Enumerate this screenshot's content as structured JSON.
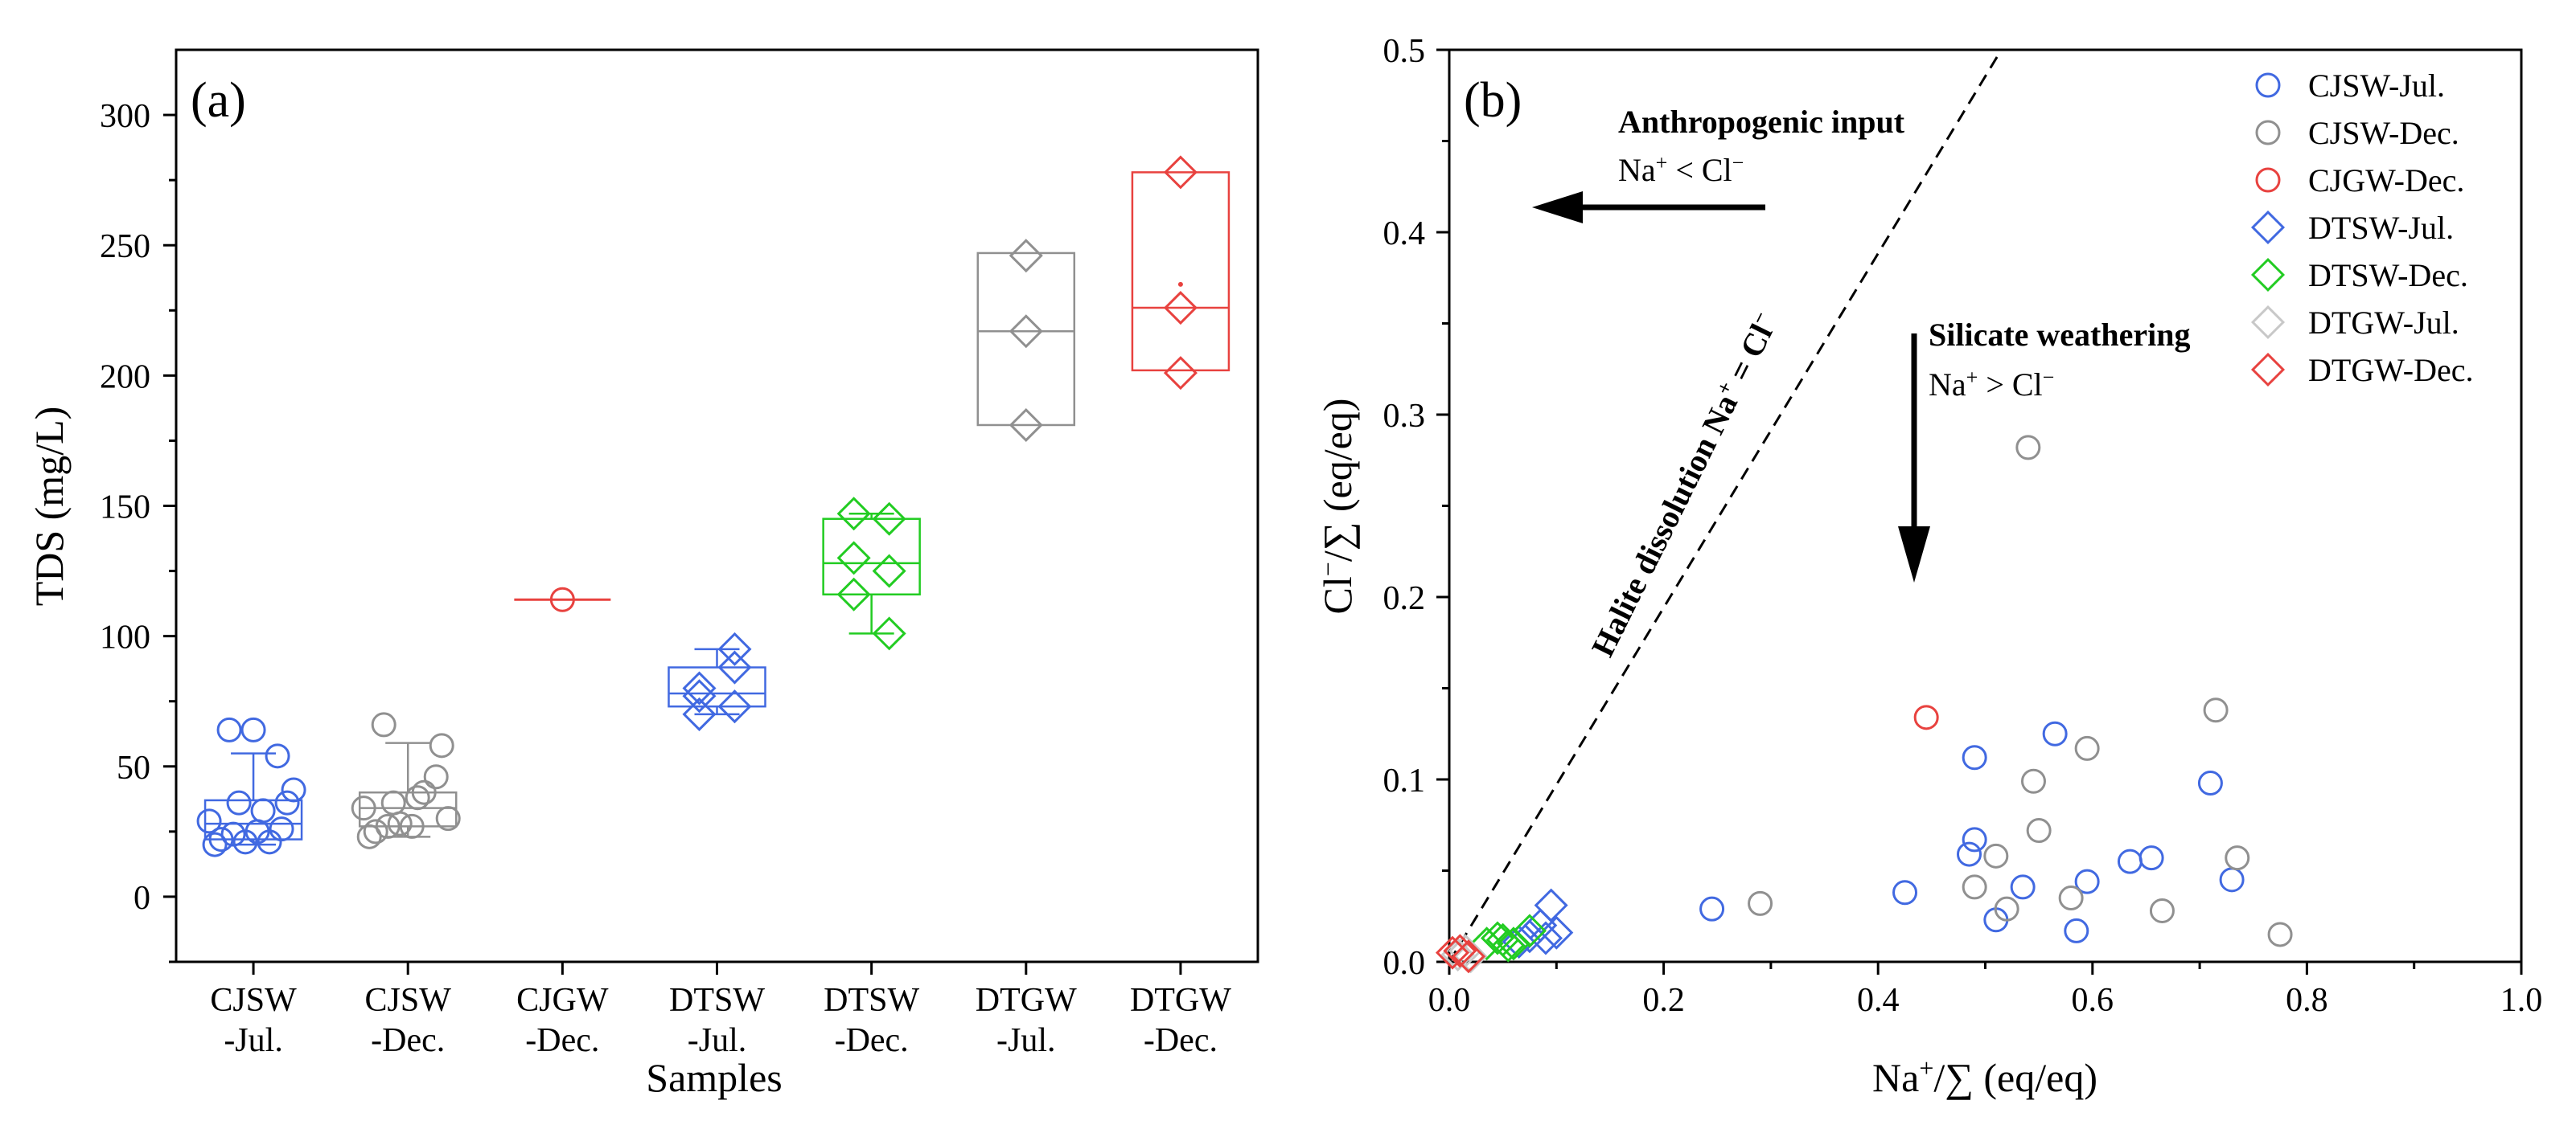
{
  "chart_data": [
    {
      "type": "box",
      "panel_label": "(a)",
      "xlabel": "Samples",
      "ylabel": "TDS (mg/L)",
      "ylim": [
        -25,
        325
      ],
      "yticks": [
        0,
        50,
        100,
        150,
        200,
        250,
        300
      ],
      "groups": [
        {
          "label1": "CJSW",
          "label2": "-Jul.",
          "marker": "circle",
          "color": "#4169e1",
          "box": {
            "q1": 22,
            "median": 28,
            "q3": 37,
            "whisker_low": 20,
            "whisker_high": 55,
            "mean": null
          },
          "points": [
            29,
            22,
            24,
            21,
            25,
            21,
            26,
            41,
            20,
            36,
            33,
            36,
            64,
            64,
            54
          ]
        },
        {
          "label1": "CJSW",
          "label2": "-Dec.",
          "marker": "circle",
          "color": "#909090",
          "box": {
            "q1": 27,
            "median": 34,
            "q3": 40,
            "whisker_low": 23,
            "whisker_high": 59,
            "mean": null
          },
          "points": [
            34,
            25,
            27,
            28,
            27,
            40,
            46,
            30,
            23,
            36,
            38,
            58,
            66
          ]
        },
        {
          "label1": "CJGW",
          "label2": "-Dec.",
          "marker": "circle",
          "color": "#e8423f",
          "box": {
            "q1": 114,
            "median": 114,
            "q3": 114,
            "whisker_low": 114,
            "whisker_high": 114,
            "mean": null
          },
          "points": [
            114
          ]
        },
        {
          "label1": "DTSW",
          "label2": "-Jul.",
          "marker": "diamond",
          "color": "#4169e1",
          "box": {
            "q1": 73,
            "median": 78,
            "q3": 88,
            "whisker_low": 70,
            "whisker_high": 95,
            "mean": null
          },
          "points": [
            80,
            73,
            70,
            88,
            77,
            95
          ]
        },
        {
          "label1": "DTSW",
          "label2": "-Dec.",
          "marker": "diamond",
          "color": "#22cc22",
          "box": {
            "q1": 116,
            "median": 128,
            "q3": 145,
            "whisker_low": 101,
            "whisker_high": 147,
            "mean": null
          },
          "points": [
            147,
            125,
            116,
            145,
            130,
            101
          ]
        },
        {
          "label1": "DTGW",
          "label2": "-Jul.",
          "marker": "diamond",
          "color": "#909090",
          "box": {
            "q1": 181,
            "median": 217,
            "q3": 247,
            "whisker_low": 181,
            "whisker_high": 247,
            "mean": null
          },
          "points": [
            246,
            217,
            181
          ]
        },
        {
          "label1": "DTGW",
          "label2": "-Dec.",
          "marker": "diamond",
          "color": "#e8423f",
          "box": {
            "q1": 202,
            "median": 226,
            "q3": 278,
            "whisker_low": 202,
            "whisker_high": 278,
            "mean": 235
          },
          "points": [
            278,
            226,
            201
          ]
        }
      ]
    },
    {
      "type": "scatter",
      "panel_label": "(b)",
      "xlabel_main": "Na",
      "xlabel_sup": "+",
      "xlabel_rest": "/∑ (eq/eq)",
      "ylabel_main": "Cl",
      "ylabel_sup": "−",
      "ylabel_rest": "/∑ (eq/eq)",
      "xlim": [
        0,
        1.0
      ],
      "ylim": [
        0,
        0.5
      ],
      "xticks": [
        "0.0",
        "0.2",
        "0.4",
        "0.6",
        "0.8",
        "1.0"
      ],
      "yticks": [
        "0.0",
        "0.1",
        "0.2",
        "0.3",
        "0.4",
        "0.5"
      ],
      "reference_line": {
        "x1": 0.0,
        "y1": 0.0,
        "x2": 0.515,
        "y2": 0.5,
        "style": "dashed"
      },
      "annotations": {
        "anthropogenic_title": "Anthropogenic input",
        "anthropogenic_sub_a": "Na",
        "anthropogenic_sub_b": "+",
        "anthropogenic_sub_c": " < Cl",
        "anthropogenic_sub_d": "−",
        "silicate_title": "Silicate weathering",
        "silicate_sub_a": "Na",
        "silicate_sub_b": "+",
        "silicate_sub_c": " > Cl",
        "silicate_sub_d": "−",
        "halite_a": "Halite dissolution Na",
        "halite_b": "+",
        "halite_c": " = Cl",
        "halite_d": "−"
      },
      "series": [
        {
          "name": "CJSW-Jul.",
          "marker": "circle",
          "color": "#4169e1",
          "points": [
            [
              0.245,
              0.029
            ],
            [
              0.425,
              0.038
            ],
            [
              0.485,
              0.059
            ],
            [
              0.49,
              0.067
            ],
            [
              0.49,
              0.112
            ],
            [
              0.51,
              0.023
            ],
            [
              0.535,
              0.041
            ],
            [
              0.565,
              0.125
            ],
            [
              0.585,
              0.017
            ],
            [
              0.595,
              0.044
            ],
            [
              0.635,
              0.055
            ],
            [
              0.655,
              0.057
            ],
            [
              0.71,
              0.098
            ],
            [
              0.73,
              0.045
            ]
          ]
        },
        {
          "name": "CJSW-Dec.",
          "marker": "circle",
          "color": "#909090",
          "points": [
            [
              0.29,
              0.032
            ],
            [
              0.49,
              0.041
            ],
            [
              0.51,
              0.058
            ],
            [
              0.52,
              0.029
            ],
            [
              0.54,
              0.282
            ],
            [
              0.545,
              0.099
            ],
            [
              0.55,
              0.072
            ],
            [
              0.58,
              0.035
            ],
            [
              0.595,
              0.117
            ],
            [
              0.665,
              0.028
            ],
            [
              0.715,
              0.138
            ],
            [
              0.735,
              0.057
            ],
            [
              0.775,
              0.015
            ]
          ]
        },
        {
          "name": "CJGW-Dec.",
          "marker": "circle",
          "color": "#e8423f",
          "points": [
            [
              0.445,
              0.134
            ]
          ]
        },
        {
          "name": "DTSW-Jul.",
          "marker": "diamond",
          "color": "#4169e1",
          "points": [
            [
              0.065,
              0.011
            ],
            [
              0.075,
              0.014
            ],
            [
              0.085,
              0.02
            ],
            [
              0.09,
              0.013
            ],
            [
              0.095,
              0.031
            ],
            [
              0.1,
              0.016
            ]
          ]
        },
        {
          "name": "DTSW-Dec.",
          "marker": "diamond",
          "color": "#22cc22",
          "points": [
            [
              0.035,
              0.01
            ],
            [
              0.045,
              0.013
            ],
            [
              0.05,
              0.012
            ],
            [
              0.055,
              0.009
            ],
            [
              0.06,
              0.01
            ],
            [
              0.075,
              0.017
            ]
          ]
        },
        {
          "name": "DTGW-Jul.",
          "marker": "diamond",
          "color": "#c8c8c8",
          "points": [
            [
              0.008,
              0.004
            ],
            [
              0.015,
              0.006
            ],
            [
              0.02,
              0.003
            ]
          ]
        },
        {
          "name": "DTGW-Dec.",
          "marker": "diamond",
          "color": "#e8423f",
          "points": [
            [
              0.003,
              0.005
            ],
            [
              0.01,
              0.006
            ],
            [
              0.018,
              0.003
            ]
          ]
        }
      ]
    }
  ]
}
